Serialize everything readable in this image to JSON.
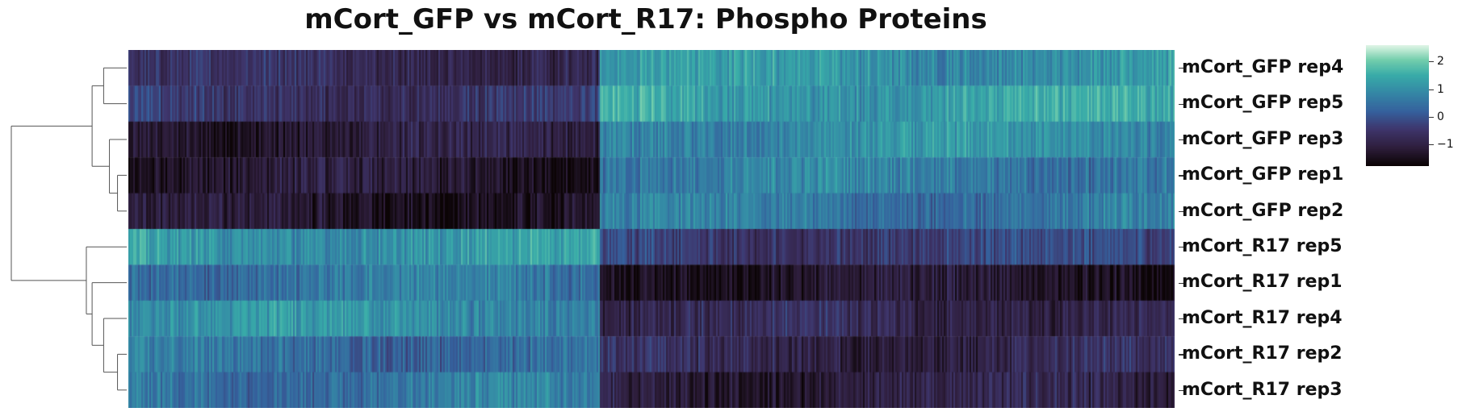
{
  "chart_data": {
    "type": "heatmap",
    "title": "mCort_GFP vs mCort_R17: Phospho Proteins",
    "rows": [
      {
        "label": "mCort_GFP rep4",
        "left_mean": -0.75,
        "right_mean": 1.1
      },
      {
        "label": "mCort_GFP rep5",
        "left_mean": -0.55,
        "right_mean": 1.3
      },
      {
        "label": "mCort_GFP rep3",
        "left_mean": -1.15,
        "right_mean": 0.95
      },
      {
        "label": "mCort_GFP rep1",
        "left_mean": -1.3,
        "right_mean": 0.7
      },
      {
        "label": "mCort_GFP rep2",
        "left_mean": -1.35,
        "right_mean": 0.6
      },
      {
        "label": "mCort_R17 rep5",
        "left_mean": 1.15,
        "right_mean": -0.35
      },
      {
        "label": "mCort_R17 rep1",
        "left_mean": 0.55,
        "right_mean": -1.35
      },
      {
        "label": "mCort_R17 rep4",
        "left_mean": 1.0,
        "right_mean": -0.85
      },
      {
        "label": "mCort_R17 rep2",
        "left_mean": 0.45,
        "right_mean": -0.9
      },
      {
        "label": "mCort_R17 rep3",
        "left_mean": 0.6,
        "right_mean": -1.05
      }
    ],
    "column_split": 0.45,
    "colorbar": {
      "colormap": "mako",
      "range": [
        -1.8,
        2.6
      ],
      "ticks": [
        2,
        1,
        0,
        -1
      ],
      "tick_labels": [
        "2",
        "1",
        "0",
        "−1"
      ]
    },
    "dendrogram": {
      "leaf_order": [
        0,
        1,
        2,
        3,
        4,
        5,
        6,
        7,
        8,
        9
      ],
      "merges": [
        {
          "a": "L3",
          "b": "L4",
          "height": 0.08
        },
        {
          "a": "L2",
          "b": "M0",
          "height": 0.15
        },
        {
          "a": "L0",
          "b": "L1",
          "height": 0.2
        },
        {
          "a": "M2",
          "b": "M1",
          "height": 0.3
        },
        {
          "a": "L8",
          "b": "L9",
          "height": 0.08
        },
        {
          "a": "L7",
          "b": "M4",
          "height": 0.2
        },
        {
          "a": "L6",
          "b": "M5",
          "height": 0.3
        },
        {
          "a": "L5",
          "b": "M6",
          "height": 0.35
        },
        {
          "a": "M3",
          "b": "M7",
          "height": 1.0
        }
      ]
    }
  }
}
